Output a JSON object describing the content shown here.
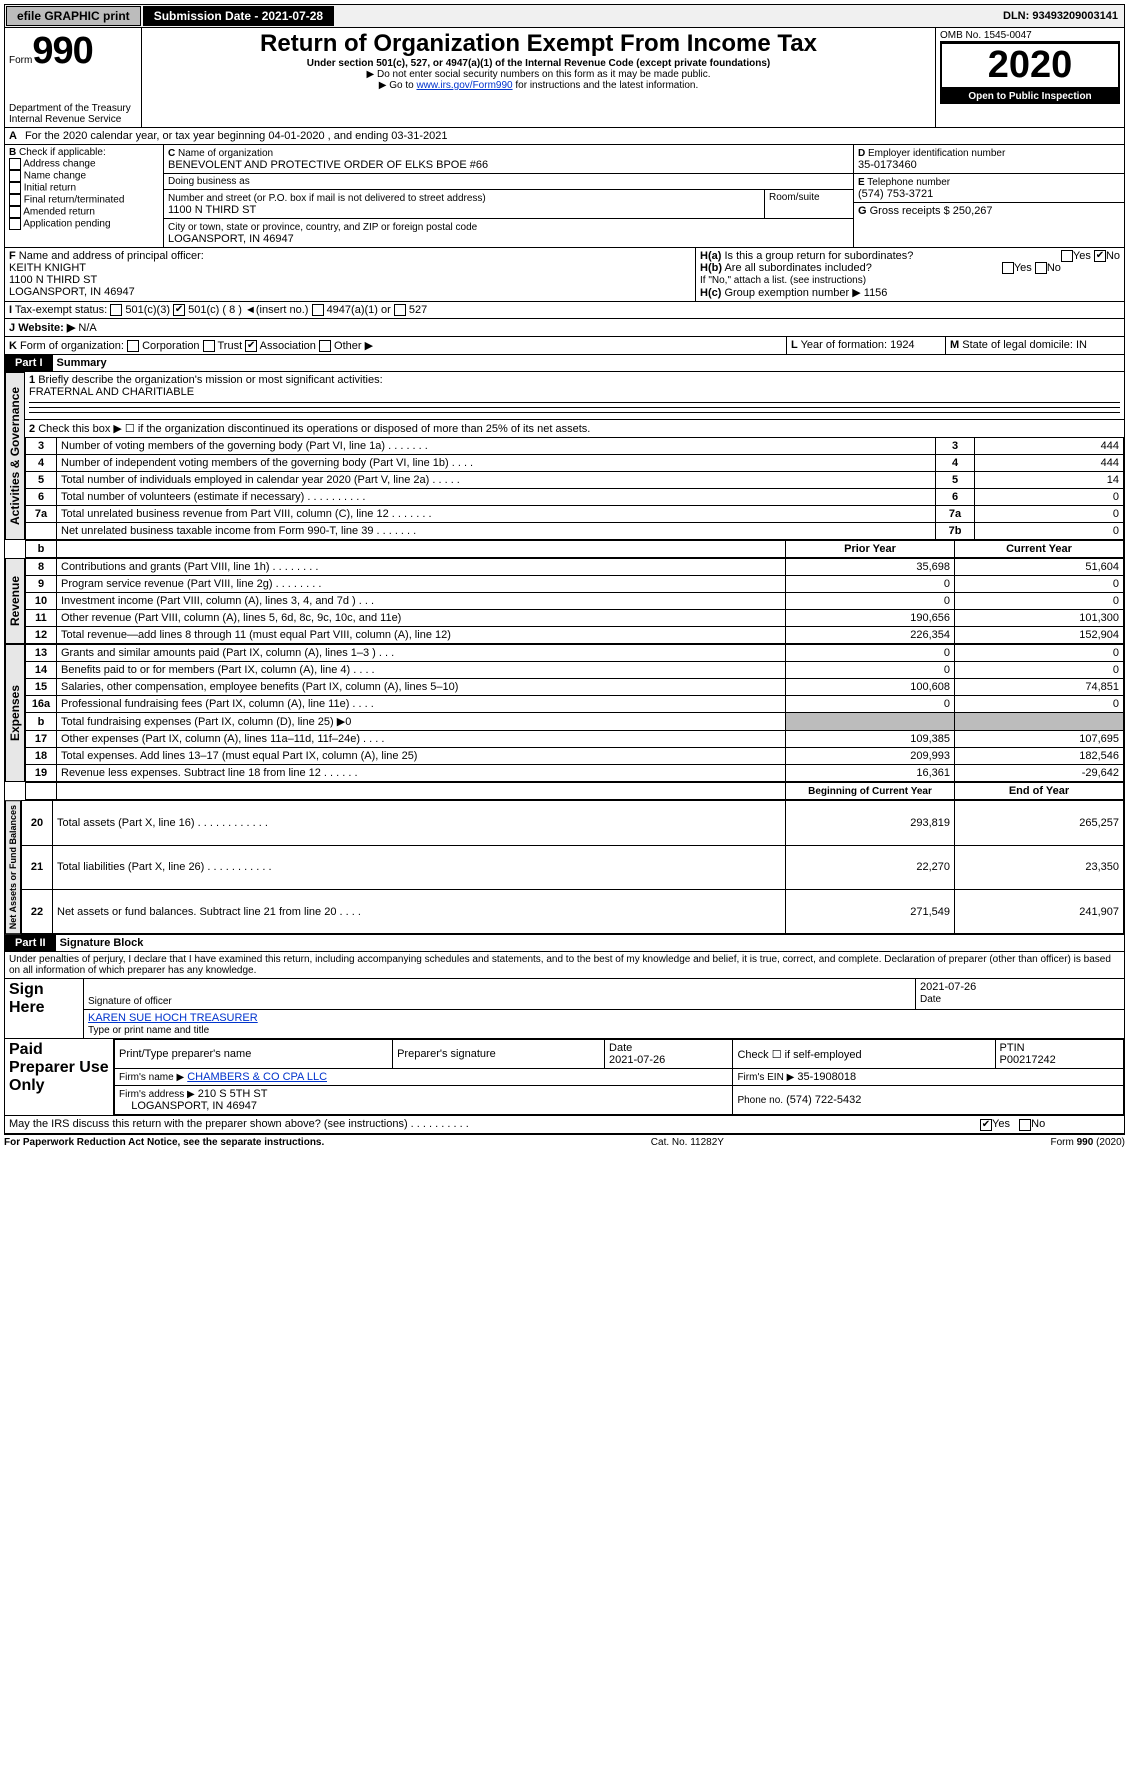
{
  "topbar": {
    "efile": "efile GRAPHIC print",
    "submission_label": "Submission Date - 2021-07-28",
    "dln": "DLN: 93493209003141"
  },
  "header": {
    "form_prefix": "Form",
    "form_no": "990",
    "title": "Return of Organization Exempt From Income Tax",
    "sub1": "Under section 501(c), 527, or 4947(a)(1) of the Internal Revenue Code (except private foundations)",
    "sub2": "Do not enter social security numbers on this form as it may be made public.",
    "sub3_pre": "Go to ",
    "sub3_link": "www.irs.gov/Form990",
    "sub3_post": " for instructions and the latest information.",
    "omb": "OMB No. 1545-0047",
    "year": "2020",
    "open": "Open to Public Inspection",
    "dept": "Department of the Treasury\nInternal Revenue Service"
  },
  "A": {
    "text": "For the 2020 calendar year, or tax year beginning 04-01-2020   , and ending 03-31-2021"
  },
  "B": {
    "label": "Check if applicable:",
    "items": [
      "Address change",
      "Name change",
      "Initial return",
      "Final return/terminated",
      "Amended return",
      "Application pending"
    ]
  },
  "C": {
    "name_label": "Name of organization",
    "name": "BENEVOLENT AND PROTECTIVE ORDER OF ELKS BPOE #66",
    "dba_label": "Doing business as",
    "street_label": "Number and street (or P.O. box if mail is not delivered to street address)",
    "street": "1100 N THIRD ST",
    "room_label": "Room/suite",
    "city_label": "City or town, state or province, country, and ZIP or foreign postal code",
    "city": "LOGANSPORT, IN  46947"
  },
  "D": {
    "label": "Employer identification number",
    "val": "35-0173460"
  },
  "E": {
    "label": "Telephone number",
    "val": "(574) 753-3721"
  },
  "G": {
    "label": "Gross receipts $",
    "val": "250,267"
  },
  "F": {
    "label": "Name and address of principal officer:",
    "name": "KEITH KNIGHT",
    "addr1": "1100 N THIRD ST",
    "addr2": "LOGANSPORT, IN  46947"
  },
  "H": {
    "a_label": "Is this a group return for subordinates?",
    "a_yes": "Yes",
    "a_no": "No",
    "b_label": "Are all subordinates included?",
    "b_note": "If \"No,\" attach a list. (see instructions)",
    "c_label": "Group exemption number ▶",
    "c_val": "1156"
  },
  "I": {
    "label": "Tax-exempt status:",
    "opts": [
      "501(c)(3)",
      "501(c) ( 8 ) ◄(insert no.)",
      "4947(a)(1) or",
      "527"
    ]
  },
  "J": {
    "label": "Website: ▶",
    "val": "N/A"
  },
  "K": {
    "label": "Form of organization:",
    "opts": [
      "Corporation",
      "Trust",
      "Association",
      "Other ▶"
    ]
  },
  "L": {
    "label": "Year of formation:",
    "val": "1924"
  },
  "M": {
    "label": "State of legal domicile:",
    "val": "IN"
  },
  "partI": {
    "tag": "Part I",
    "title": "Summary"
  },
  "q1": {
    "label": "Briefly describe the organization's mission or most significant activities:",
    "val": "FRATERNAL AND CHARITIABLE"
  },
  "q2": "Check this box ▶ ☐ if the organization discontinued its operations or disposed of more than 25% of its net assets.",
  "sidelabels": {
    "ag": "Activities & Governance",
    "rev": "Revenue",
    "exp": "Expenses",
    "na": "Net Assets or Fund Balances"
  },
  "lines_ag": [
    {
      "n": "3",
      "d": "Number of voting members of the governing body (Part VI, line 1a)   .    .    .    .    .    .    .",
      "box": "3",
      "v": "444"
    },
    {
      "n": "4",
      "d": "Number of independent voting members of the governing body (Part VI, line 1b)   .    .    .    .",
      "box": "4",
      "v": "444"
    },
    {
      "n": "5",
      "d": "Total number of individuals employed in calendar year 2020 (Part V, line 2a)   .    .    .    .    .",
      "box": "5",
      "v": "14"
    },
    {
      "n": "6",
      "d": "Total number of volunteers (estimate if necessary)   .    .    .    .    .    .    .    .    .    .",
      "box": "6",
      "v": "0"
    },
    {
      "n": "7a",
      "d": "Total unrelated business revenue from Part VIII, column (C), line 12   .    .    .    .    .    .    .",
      "box": "7a",
      "v": "0"
    },
    {
      "n": "",
      "d": "Net unrelated business taxable income from Form 990-T, line 39   .    .    .    .    .    .    .",
      "box": "7b",
      "v": "0"
    }
  ],
  "col_hdr": {
    "b_label": "b",
    "py": "Prior Year",
    "cy": "Current Year"
  },
  "lines_rev": [
    {
      "n": "8",
      "d": "Contributions and grants (Part VIII, line 1h)   .    .    .    .    .    .    .    .",
      "py": "35,698",
      "cy": "51,604"
    },
    {
      "n": "9",
      "d": "Program service revenue (Part VIII, line 2g)   .    .    .    .    .    .    .    .",
      "py": "0",
      "cy": "0"
    },
    {
      "n": "10",
      "d": "Investment income (Part VIII, column (A), lines 3, 4, and 7d )   .    .    .",
      "py": "0",
      "cy": "0"
    },
    {
      "n": "11",
      "d": "Other revenue (Part VIII, column (A), lines 5, 6d, 8c, 9c, 10c, and 11e)",
      "py": "190,656",
      "cy": "101,300"
    },
    {
      "n": "12",
      "d": "Total revenue—add lines 8 through 11 (must equal Part VIII, column (A), line 12)",
      "py": "226,354",
      "cy": "152,904"
    }
  ],
  "lines_exp": [
    {
      "n": "13",
      "d": "Grants and similar amounts paid (Part IX, column (A), lines 1–3 )   .    .    .",
      "py": "0",
      "cy": "0"
    },
    {
      "n": "14",
      "d": "Benefits paid to or for members (Part IX, column (A), line 4)   .    .    .    .",
      "py": "0",
      "cy": "0"
    },
    {
      "n": "15",
      "d": "Salaries, other compensation, employee benefits (Part IX, column (A), lines 5–10)",
      "py": "100,608",
      "cy": "74,851"
    },
    {
      "n": "16a",
      "d": "Professional fundraising fees (Part IX, column (A), line 11e)   .    .    .    .",
      "py": "0",
      "cy": "0"
    },
    {
      "n": "b",
      "d": "Total fundraising expenses (Part IX, column (D), line 25) ▶0",
      "py": "",
      "cy": "",
      "shade": true
    },
    {
      "n": "17",
      "d": "Other expenses (Part IX, column (A), lines 11a–11d, 11f–24e)   .    .    .    .",
      "py": "109,385",
      "cy": "107,695"
    },
    {
      "n": "18",
      "d": "Total expenses. Add lines 13–17 (must equal Part IX, column (A), line 25)",
      "py": "209,993",
      "cy": "182,546"
    },
    {
      "n": "19",
      "d": "Revenue less expenses. Subtract line 18 from line 12   .    .    .    .    .    .",
      "py": "16,361",
      "cy": "-29,642"
    }
  ],
  "col_hdr2": {
    "py": "Beginning of Current Year",
    "cy": "End of Year"
  },
  "lines_na": [
    {
      "n": "20",
      "d": "Total assets (Part X, line 16)   .    .    .    .    .    .    .    .    .    .    .    .",
      "py": "293,819",
      "cy": "265,257"
    },
    {
      "n": "21",
      "d": "Total liabilities (Part X, line 26)   .    .    .    .    .    .    .    .    .    .    .",
      "py": "22,270",
      "cy": "23,350"
    },
    {
      "n": "22",
      "d": "Net assets or fund balances. Subtract line 21 from line 20   .    .    .    .",
      "py": "271,549",
      "cy": "241,907"
    }
  ],
  "partII": {
    "tag": "Part II",
    "title": "Signature Block"
  },
  "perjury": "Under penalties of perjury, I declare that I have examined this return, including accompanying schedules and statements, and to the best of my knowledge and belief, it is true, correct, and complete. Declaration of preparer (other than officer) is based on all information of which preparer has any knowledge.",
  "sign": {
    "here": "Sign Here",
    "sig_label": "Signature of officer",
    "date": "2021-07-26",
    "date_label": "Date",
    "name": "KAREN SUE HOCH  TREASURER",
    "name_label": "Type or print name and title"
  },
  "paid": {
    "here": "Paid Preparer Use Only",
    "c1": "Print/Type preparer's name",
    "c2": "Preparer's signature",
    "c3": "Date",
    "c3v": "2021-07-26",
    "c4": "Check ☐ if self-employed",
    "c5": "PTIN",
    "c5v": "P00217242",
    "firm_name_l": "Firm's name    ▶",
    "firm_name": "CHAMBERS & CO CPA LLC",
    "firm_ein_l": "Firm's EIN ▶",
    "firm_ein": "35-1908018",
    "firm_addr_l": "Firm's address ▶",
    "firm_addr": "210 S 5TH ST",
    "firm_city": "LOGANSPORT, IN  46947",
    "phone_l": "Phone no.",
    "phone": "(574) 722-5432"
  },
  "discuss": {
    "q": "May the IRS discuss this return with the preparer shown above? (see instructions)   .    .    .    .    .    .    .    .    .    .",
    "yes": "Yes",
    "no": "No"
  },
  "footer": {
    "left": "For Paperwork Reduction Act Notice, see the separate instructions.",
    "mid": "Cat. No. 11282Y",
    "right": "Form 990 (2020)"
  }
}
